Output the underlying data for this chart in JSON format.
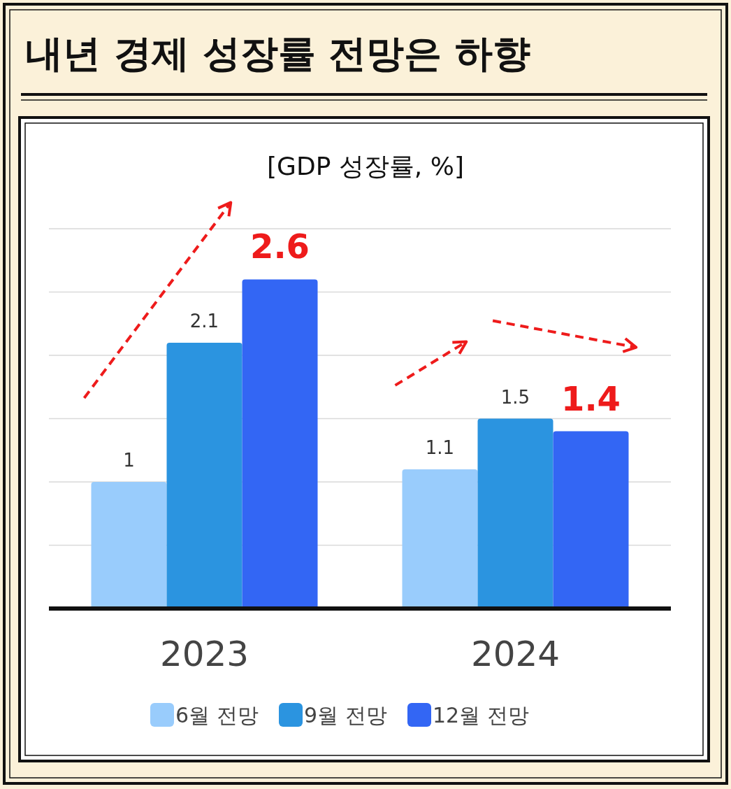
{
  "chart_data": {
    "type": "bar",
    "title": "내년 경제 성장률 전망은 하향",
    "subtitle": "[GDP 성장률, %]",
    "categories": [
      "2023",
      "2024"
    ],
    "series": [
      {
        "name": "6월 전망",
        "color": "#99ccfc",
        "values": [
          1,
          1.1
        ]
      },
      {
        "name": "9월 전망",
        "color": "#2b94e0",
        "values": [
          2.1,
          1.5
        ]
      },
      {
        "name": "12월 전망",
        "color": "#3366f4",
        "values": [
          2.6,
          1.4
        ]
      }
    ],
    "ylim": [
      0,
      3
    ],
    "yticks": [
      {
        "value": 0,
        "label": null
      },
      {
        "value": 0.5,
        "label": null
      },
      {
        "value": 1,
        "label": null
      },
      {
        "value": 1.5,
        "label": null
      },
      {
        "value": 2,
        "label": null
      },
      {
        "value": 2.5,
        "label": null
      },
      {
        "value": 3,
        "label": null
      }
    ],
    "grid": "y",
    "legend": "bottom",
    "data_labels": true
  }
}
